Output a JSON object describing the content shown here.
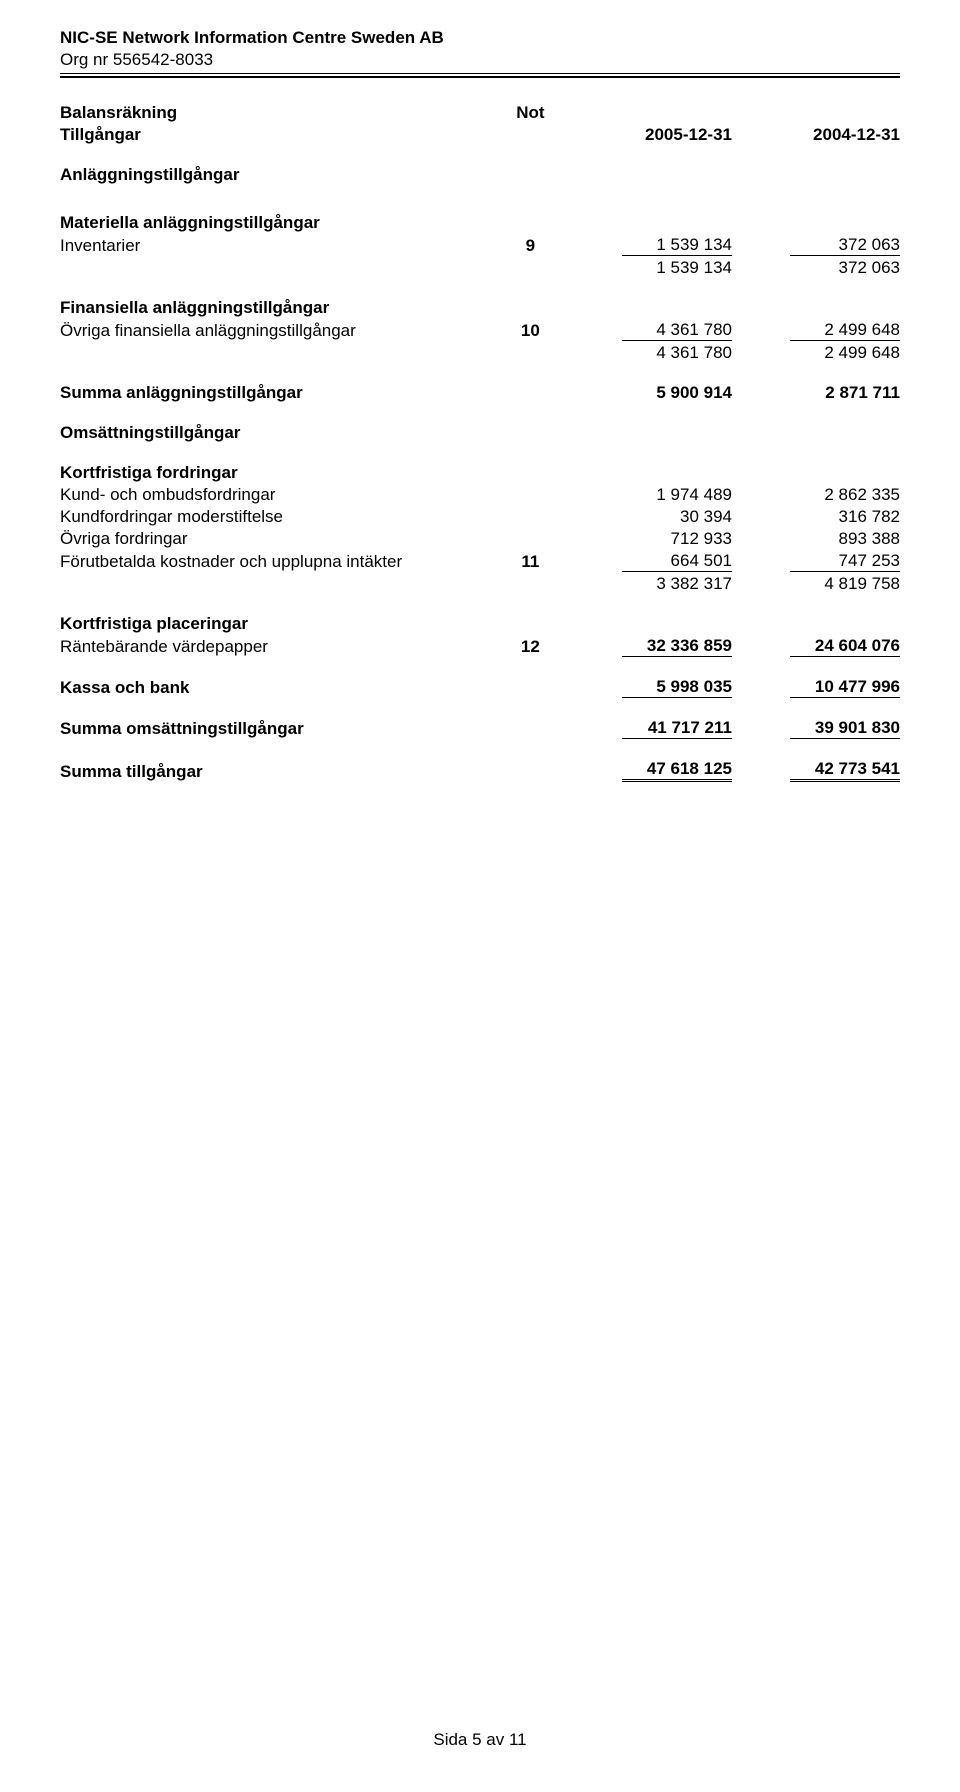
{
  "header": {
    "company": "NIC-SE Network Information Centre Sweden AB",
    "org_line": "Org nr 556542-8033"
  },
  "columns": {
    "not_label": "Not",
    "date1": "2005-12-31",
    "date2": "2004-12-31"
  },
  "sections": {
    "title1": "Balansräkning",
    "title2": "Tillgångar",
    "anlaggning": "Anläggningstillgångar",
    "materiella": "Materiella anläggningstillgångar",
    "inventarier": "Inventarier",
    "inventarier_not": "9",
    "inventarier_v1": "1 539 134",
    "inventarier_v2": "372 063",
    "materiella_sum_v1": "1 539 134",
    "materiella_sum_v2": "372 063",
    "finansiella_h": "Finansiella anläggningstillgångar",
    "ovriga_fin": "Övriga finansiella anläggningstillgångar",
    "ovriga_fin_not": "10",
    "ovriga_fin_v1": "4 361 780",
    "ovriga_fin_v2": "2 499 648",
    "fin_sum_v1": "4 361 780",
    "fin_sum_v2": "2 499 648",
    "summa_anl": "Summa anläggningstillgångar",
    "summa_anl_v1": "5 900 914",
    "summa_anl_v2": "2 871 711",
    "omsattning_h": "Omsättningstillgångar",
    "kort_ford_h": "Kortfristiga fordringar",
    "kund": "Kund- och ombudsfordringar",
    "kund_v1": "1 974 489",
    "kund_v2": "2 862 335",
    "moder": "Kundfordringar moderstiftelse",
    "moder_v1": "30 394",
    "moder_v2": "316 782",
    "ovr_ford": "Övriga fordringar",
    "ovr_ford_v1": "712 933",
    "ovr_ford_v2": "893 388",
    "forut": "Förutbetalda kostnader och upplupna intäkter",
    "forut_not": "11",
    "forut_v1": "664 501",
    "forut_v2": "747 253",
    "kf_sum_v1": "3 382 317",
    "kf_sum_v2": "4 819 758",
    "kort_plac_h": "Kortfristiga placeringar",
    "rante": "Räntebärande värdepapper",
    "rante_not": "12",
    "rante_v1": "32 336 859",
    "rante_v2": "24 604 076",
    "kassa": "Kassa och bank",
    "kassa_v1": "5 998 035",
    "kassa_v2": "10 477 996",
    "summa_oms": "Summa omsättningstillgångar",
    "summa_oms_v1": "41 717 211",
    "summa_oms_v2": "39 901 830",
    "summa_till": "Summa tillgångar",
    "summa_till_v1": "47 618 125",
    "summa_till_v2": "42 773 541"
  },
  "footer": "Sida 5 av 11"
}
